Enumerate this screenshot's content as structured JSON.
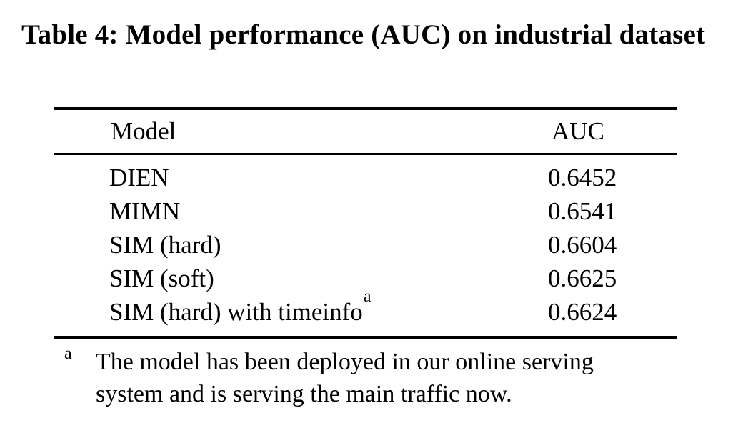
{
  "caption": "Table 4: Model performance (AUC) on industrial dataset",
  "table": {
    "headers": {
      "model": "Model",
      "auc": "AUC"
    },
    "rows": [
      {
        "model": "DIEN",
        "sup": "",
        "auc": "0.6452"
      },
      {
        "model": "MIMN",
        "sup": "",
        "auc": "0.6541"
      },
      {
        "model": "SIM (hard)",
        "sup": "",
        "auc": "0.6604"
      },
      {
        "model": "SIM (soft)",
        "sup": "",
        "auc": "0.6625"
      },
      {
        "model": "SIM (hard) with timeinfo",
        "sup": "a",
        "auc": "0.6624"
      }
    ]
  },
  "footnote": {
    "marker": "a",
    "lines": [
      "The model has been deployed in our online serving",
      "system and is serving the main traffic now."
    ]
  },
  "colors": {
    "text": "#000000",
    "background": "#ffffff",
    "rule": "#000000"
  }
}
